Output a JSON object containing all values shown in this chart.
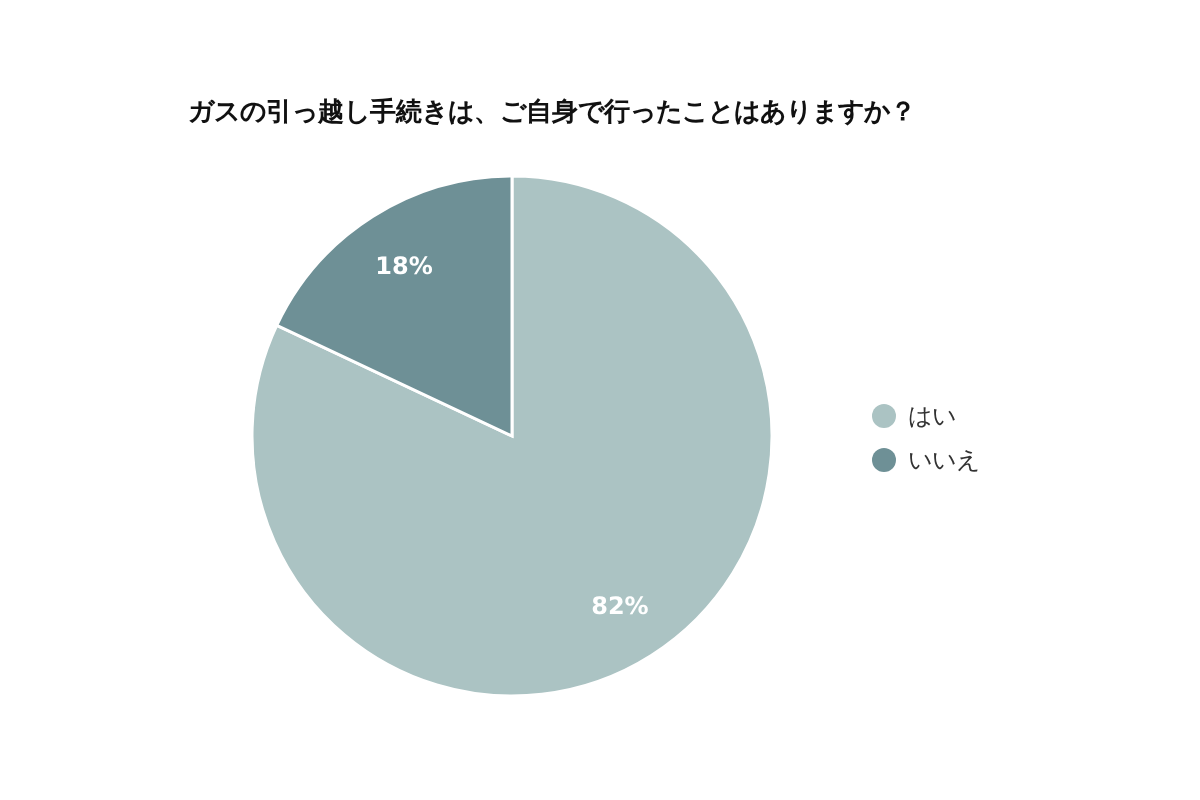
{
  "chart_data": {
    "type": "pie",
    "title": "ガスの引っ越し手続きは、ご自身で行ったことはありますか？",
    "categories": [
      "はい",
      "いいえ"
    ],
    "values": [
      82,
      18
    ],
    "colors": [
      "#abc3c3",
      "#6e9096"
    ],
    "value_labels": [
      "82%",
      "18%"
    ],
    "legend": "right"
  }
}
